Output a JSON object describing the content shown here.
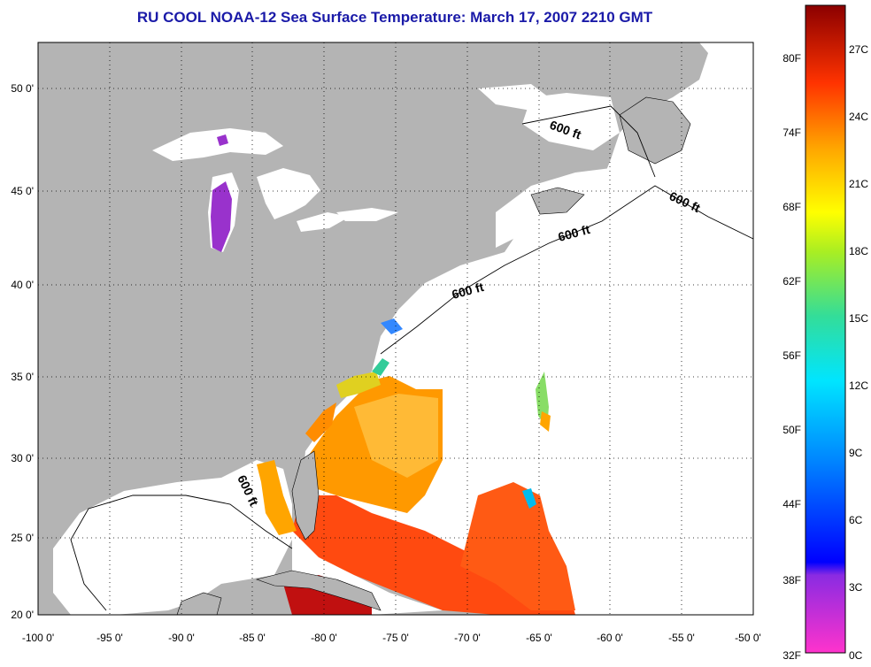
{
  "title": "RU COOL  NOAA-12  Sea Surface Temperature:  March 17, 2007 2210 GMT",
  "map": {
    "lon_range": [
      -100,
      -50
    ],
    "lat_range": [
      20,
      52
    ],
    "lon_ticks": [
      "-100 0'",
      "-95 0'",
      "-90 0'",
      "-85 0'",
      "-80 0'",
      "-75 0'",
      "-70 0'",
      "-65 0'",
      "-60 0'",
      "-55 0'",
      "-50 0'"
    ],
    "lat_ticks": [
      "20 0'",
      "25 0'",
      "30 0'",
      "35 0'",
      "40 0'",
      "45 0'",
      "50 0'"
    ],
    "isobath_labels": [
      "600 ft",
      "600 ft",
      "600 ft",
      "600 ft",
      "600 ft"
    ],
    "colors": {
      "land": "#b4b4b4",
      "no_data": "#ffffff",
      "grid": "#000000"
    }
  },
  "colorbar": {
    "fahrenheit_labels": [
      "80F",
      "74F",
      "68F",
      "62F",
      "56F",
      "50F",
      "44F",
      "38F",
      "32F"
    ],
    "celsius_labels": [
      "27C",
      "24C",
      "21C",
      "18C",
      "15C",
      "12C",
      "9C",
      "6C",
      "3C",
      "0C"
    ],
    "range_c": [
      0,
      29
    ]
  }
}
